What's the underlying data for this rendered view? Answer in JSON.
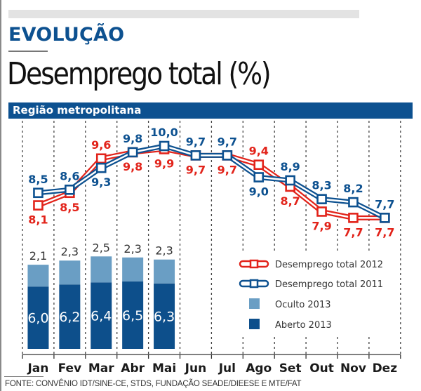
{
  "header": {
    "kicker": "EVOLUÇÃO",
    "title": "Desemprego total (%)",
    "band_label": "Região metropolitana"
  },
  "colors": {
    "brand_blue": "#0d5190",
    "red_2012": "#e2231a",
    "blue_2011": "#0d5190",
    "oculto": "#6a9ec4",
    "aberto": "#0d4f8b"
  },
  "chart_data": {
    "type": "bar",
    "title": "Desemprego total (%)",
    "subtitle": "Região metropolitana",
    "categories": [
      "Jan",
      "Fev",
      "Mar",
      "Abr",
      "Mai",
      "Jun",
      "Jul",
      "Ago",
      "Set",
      "Out",
      "Nov",
      "Dez"
    ],
    "line_series": [
      {
        "name": "Desemprego total 2012",
        "color": "#e2231a",
        "values": [
          8.1,
          8.5,
          9.6,
          9.8,
          9.9,
          9.7,
          9.7,
          9.4,
          8.7,
          7.9,
          7.7,
          7.7
        ],
        "labels": [
          "8,1",
          "8,5",
          "9,6",
          "9,8",
          "9,9",
          "9,7",
          "9,7",
          "9,4",
          "8,7",
          "7,9",
          "7,7",
          "7,7"
        ]
      },
      {
        "name": "Desemprego total 2011",
        "color": "#0d5190",
        "values": [
          8.5,
          8.6,
          9.3,
          9.8,
          10.0,
          9.7,
          9.7,
          9.0,
          8.9,
          8.3,
          8.2,
          7.7
        ],
        "labels": [
          "8,5",
          "8,6",
          "9,3",
          "9,8",
          "10,0",
          "9,7",
          "9,7",
          "9,0",
          "8,9",
          "8,3",
          "8,2",
          "7,7"
        ]
      }
    ],
    "bar_series": [
      {
        "name": "Aberto 2013",
        "color": "#0d4f8b",
        "values": [
          6.0,
          6.2,
          6.4,
          6.5,
          6.3
        ],
        "labels": [
          "6,0",
          "6,2",
          "6,4",
          "6,5",
          "6,3"
        ]
      },
      {
        "name": "Oculto 2013",
        "color": "#6a9ec4",
        "values": [
          2.1,
          2.3,
          2.5,
          2.3,
          2.3
        ],
        "labels": [
          "2,1",
          "2,3",
          "2,5",
          "2,3",
          "2,3"
        ]
      }
    ],
    "stacked": true,
    "legend": [
      "Desemprego total 2012",
      "Desemprego total 2011",
      "Oculto 2013",
      "Aberto 2013"
    ],
    "legend_position": "right-middle",
    "grid": "vertical-dashed",
    "xlabel": "",
    "ylabel": ""
  },
  "source": "FONTE: CONVÊNIO IDT/SINE-CE, STDS, FUNDAÇÃO SEADE/DIEESE E MTE/FAT"
}
